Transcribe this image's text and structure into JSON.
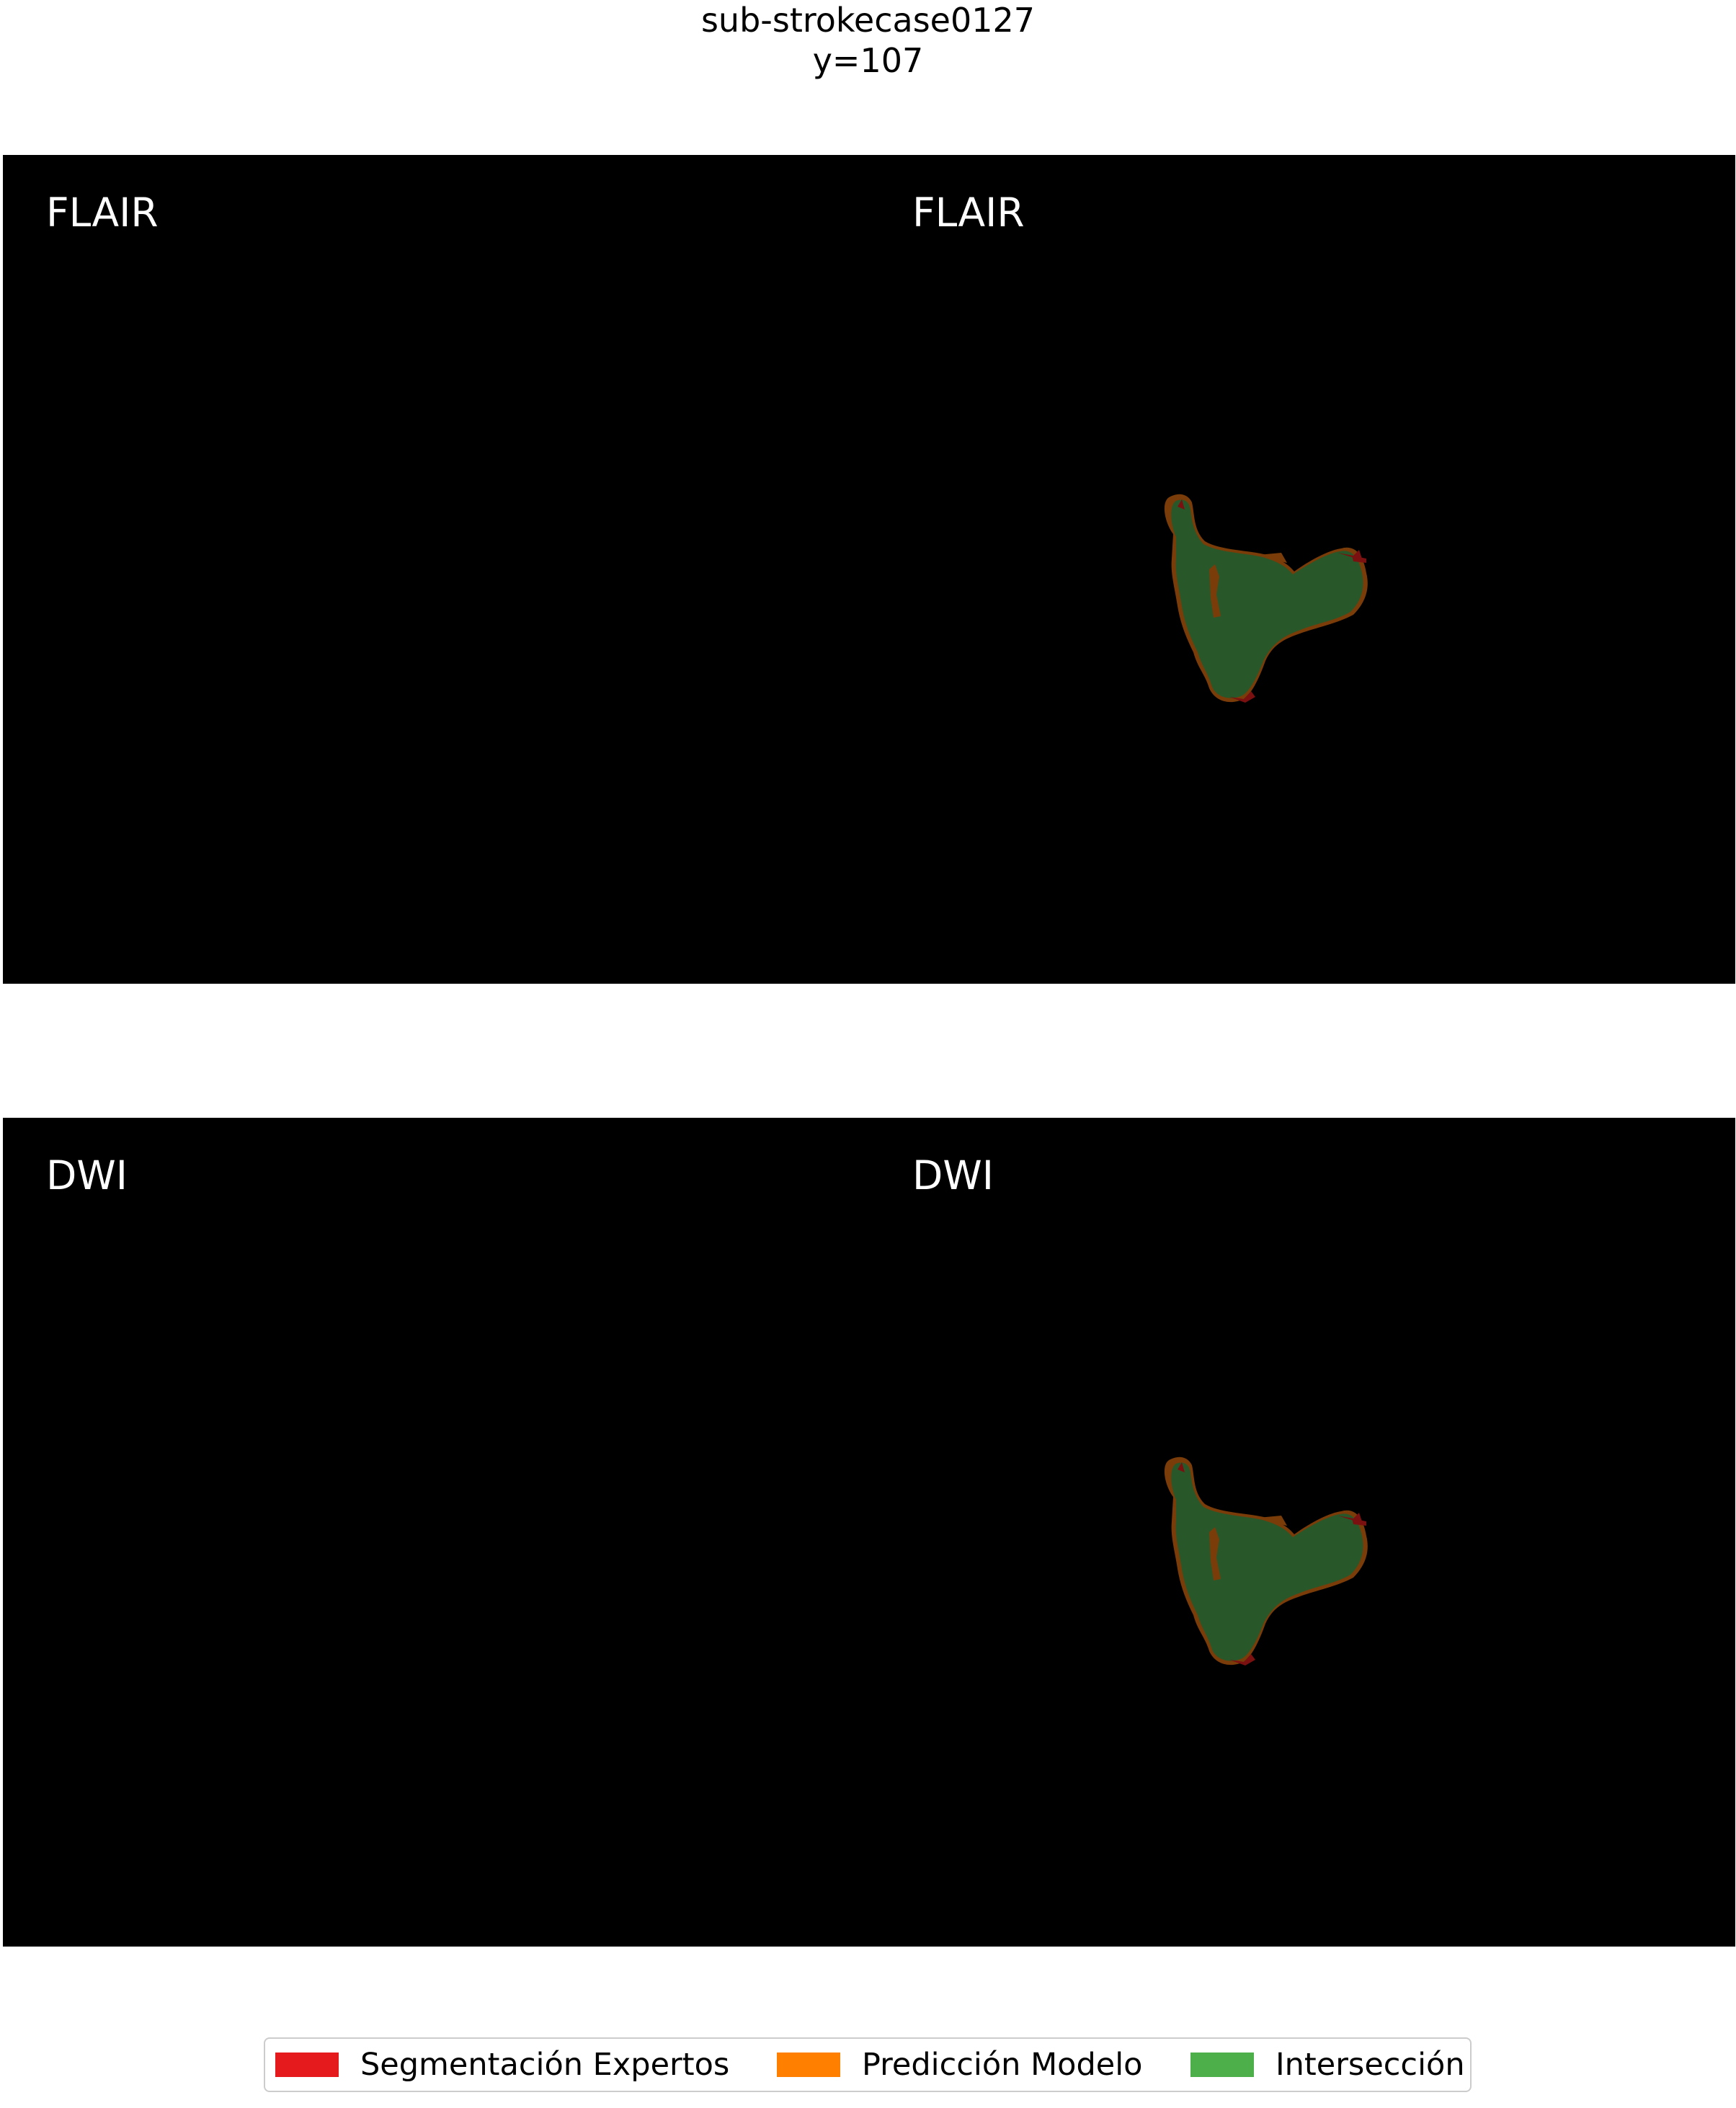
{
  "figure": {
    "title_line1": "sub-strokecase0127",
    "title_line2": "y=107"
  },
  "rows": [
    {
      "left_label": "FLAIR",
      "right_label": "FLAIR"
    },
    {
      "left_label": "DWI",
      "right_label": "DWI"
    }
  ],
  "legend": {
    "items": [
      {
        "label": "Segmentación Expertos",
        "color": "#e41a1c"
      },
      {
        "label": "Predicción Modelo",
        "color": "#ff7f00"
      },
      {
        "label": "Intersección",
        "color": "#4daf4a"
      }
    ]
  },
  "colors": {
    "background": "#000000",
    "intersection_overlay": "#28582a",
    "prediction_overlay": "#7a3c08",
    "expert_overlay": "#7a1010"
  }
}
